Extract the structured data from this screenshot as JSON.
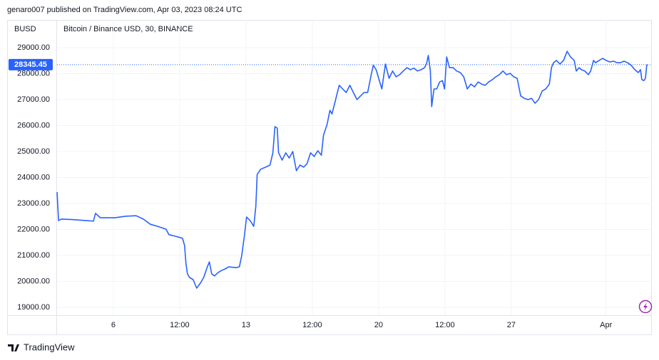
{
  "chart_data": {
    "type": "line",
    "attribution": "genaro007 published on TradingView.com, Apr 03, 2023 08:24 UTC",
    "ylabel": "BUSD",
    "brand": "TradingView",
    "last_price": 28345.45,
    "grid": true,
    "xlim": [
      3.03,
      34.42
    ],
    "ylim": [
      18699,
      30068
    ],
    "xticks": [
      6,
      {
        "value": 9.5,
        "label": "12:00"
      },
      13,
      {
        "value": 16.5,
        "label": "12:00"
      },
      20,
      {
        "value": 23.5,
        "label": "12:00"
      },
      27,
      {
        "value": 32,
        "label": "Apr"
      }
    ],
    "yticks": [
      {
        "value": 19000,
        "label": "19000.00"
      },
      {
        "value": 20000,
        "label": "20000.00"
      },
      {
        "value": 21000,
        "label": "21000.00"
      },
      {
        "value": 22000,
        "label": "22000.00"
      },
      {
        "value": 23000,
        "label": "23000.00"
      },
      {
        "value": 24000,
        "label": "24000.00"
      },
      {
        "value": 25000,
        "label": "25000.00"
      },
      {
        "value": 26000,
        "label": "26000.00"
      },
      {
        "value": 27000,
        "label": "27000.00"
      },
      {
        "value": 28000,
        "label": "28000.00"
      },
      {
        "value": 29000,
        "label": "29000.00"
      }
    ],
    "x": [
      3.03,
      3.11,
      3.26,
      3.82,
      4.95,
      5.06,
      5.32,
      6.08,
      6.64,
      7.2,
      7.58,
      7.95,
      8.33,
      8.78,
      8.93,
      9.27,
      9.65,
      9.76,
      9.83,
      9.91,
      10.02,
      10.21,
      10.4,
      10.59,
      10.77,
      10.96,
      11.07,
      11.19,
      11.34,
      11.53,
      11.71,
      11.9,
      12.09,
      12.47,
      12.65,
      12.77,
      12.92,
      13.03,
      13.22,
      13.41,
      13.52,
      13.59,
      13.78,
      14.04,
      14.27,
      14.42,
      14.53,
      14.65,
      14.72,
      14.91,
      15.1,
      15.28,
      15.47,
      15.66,
      15.85,
      16.04,
      16.22,
      16.41,
      16.6,
      16.79,
      16.98,
      17.09,
      17.28,
      17.43,
      17.54,
      17.73,
      17.92,
      18.1,
      18.29,
      18.48,
      18.67,
      18.86,
      19.04,
      19.23,
      19.42,
      19.61,
      19.72,
      19.87,
      19.98,
      20.17,
      20.36,
      20.55,
      20.74,
      20.92,
      21.11,
      21.3,
      21.49,
      21.68,
      21.86,
      22.05,
      22.24,
      22.43,
      22.54,
      22.62,
      22.73,
      22.8,
      22.92,
      23.07,
      23.22,
      23.37,
      23.48,
      23.59,
      23.74,
      23.93,
      24.12,
      24.31,
      24.49,
      24.68,
      24.87,
      25.06,
      25.25,
      25.43,
      25.62,
      25.81,
      26.0,
      26.19,
      26.37,
      26.56,
      26.75,
      26.94,
      27.13,
      27.31,
      27.5,
      27.69,
      27.88,
      28.07,
      28.25,
      28.44,
      28.63,
      28.82,
      29.01,
      29.12,
      29.23,
      29.38,
      29.57,
      29.76,
      29.95,
      30.13,
      30.32,
      30.43,
      30.58,
      30.7,
      30.88,
      31.07,
      31.19,
      31.34,
      31.45,
      31.64,
      31.82,
      32.01,
      32.2,
      32.39,
      32.58,
      32.76,
      32.95,
      33.14,
      33.33,
      33.52,
      33.7,
      33.82,
      33.89,
      34.0,
      34.08,
      34.15,
      34.19
    ],
    "series": [
      {
        "name": "Bitcoin / Binance USD, 30, BINANCE",
        "color": "#2962ff",
        "values": [
          23440,
          22340,
          22400,
          22380,
          22320,
          22620,
          22450,
          22450,
          22510,
          22530,
          22400,
          22200,
          22120,
          22010,
          21800,
          21740,
          21660,
          21380,
          20700,
          20290,
          20150,
          20070,
          19740,
          19930,
          20150,
          20560,
          20750,
          20290,
          20210,
          20340,
          20420,
          20480,
          20560,
          20530,
          20560,
          20970,
          21790,
          22480,
          22340,
          22120,
          22890,
          24120,
          24320,
          24400,
          24480,
          24950,
          25960,
          25900,
          24950,
          24670,
          24950,
          24750,
          25000,
          24260,
          24480,
          24400,
          24530,
          24950,
          24810,
          25030,
          24860,
          25630,
          26040,
          26590,
          26450,
          27000,
          27550,
          27410,
          27270,
          27550,
          27270,
          27000,
          27140,
          27270,
          27270,
          27960,
          28320,
          28150,
          27880,
          27410,
          28370,
          27820,
          28100,
          27880,
          27960,
          28100,
          28230,
          28150,
          28210,
          28100,
          28150,
          28230,
          28420,
          28700,
          28100,
          26730,
          27410,
          27410,
          27680,
          27730,
          27410,
          28640,
          28230,
          28230,
          28100,
          28040,
          27880,
          27410,
          27600,
          27490,
          27680,
          27600,
          27550,
          27680,
          27770,
          27880,
          27960,
          28100,
          27960,
          28010,
          27880,
          27820,
          27140,
          27050,
          27000,
          27050,
          26860,
          27000,
          27330,
          27410,
          27600,
          28230,
          28420,
          28510,
          28370,
          28510,
          28860,
          28640,
          28510,
          28100,
          28230,
          28150,
          28100,
          27960,
          28100,
          28510,
          28420,
          28510,
          28590,
          28510,
          28450,
          28480,
          28420,
          28420,
          28480,
          28420,
          28320,
          28150,
          28040,
          28150,
          27770,
          27730,
          27820,
          28320,
          28345.45
        ]
      }
    ]
  }
}
